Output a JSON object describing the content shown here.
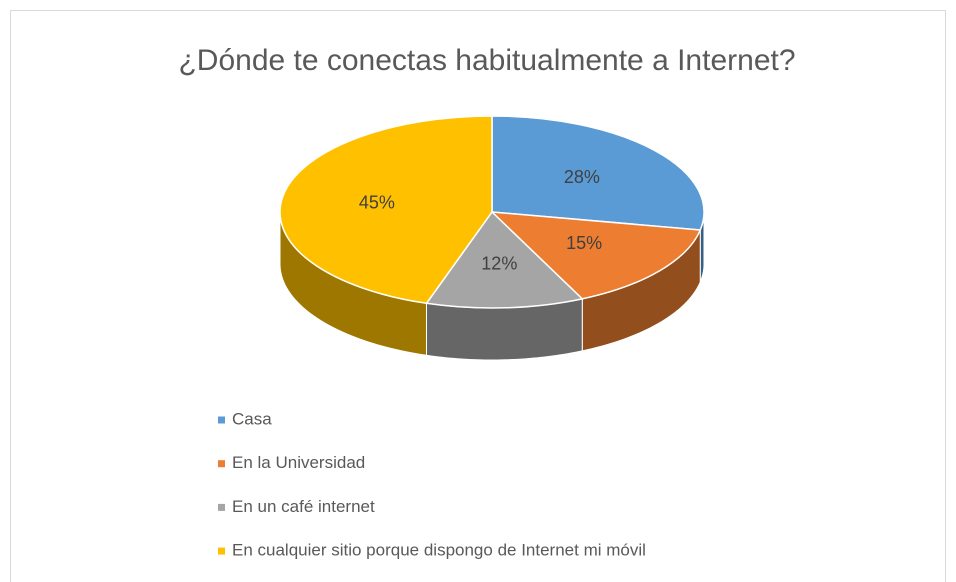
{
  "chart_data": {
    "type": "pie3d",
    "title": "¿Dónde te conectas habitualmente a Internet?",
    "categories": [
      "Casa",
      "En la Universidad",
      "En un café internet",
      "En cualquier sitio porque dispongo de Internet mi móvil"
    ],
    "values": [
      28,
      15,
      12,
      45
    ],
    "value_labels": [
      "28%",
      "15%",
      "12%",
      "45%"
    ],
    "colors": [
      "#5b9bd5",
      "#ed7d31",
      "#a5a5a5",
      "#ffc000"
    ],
    "legend": "bottom"
  }
}
